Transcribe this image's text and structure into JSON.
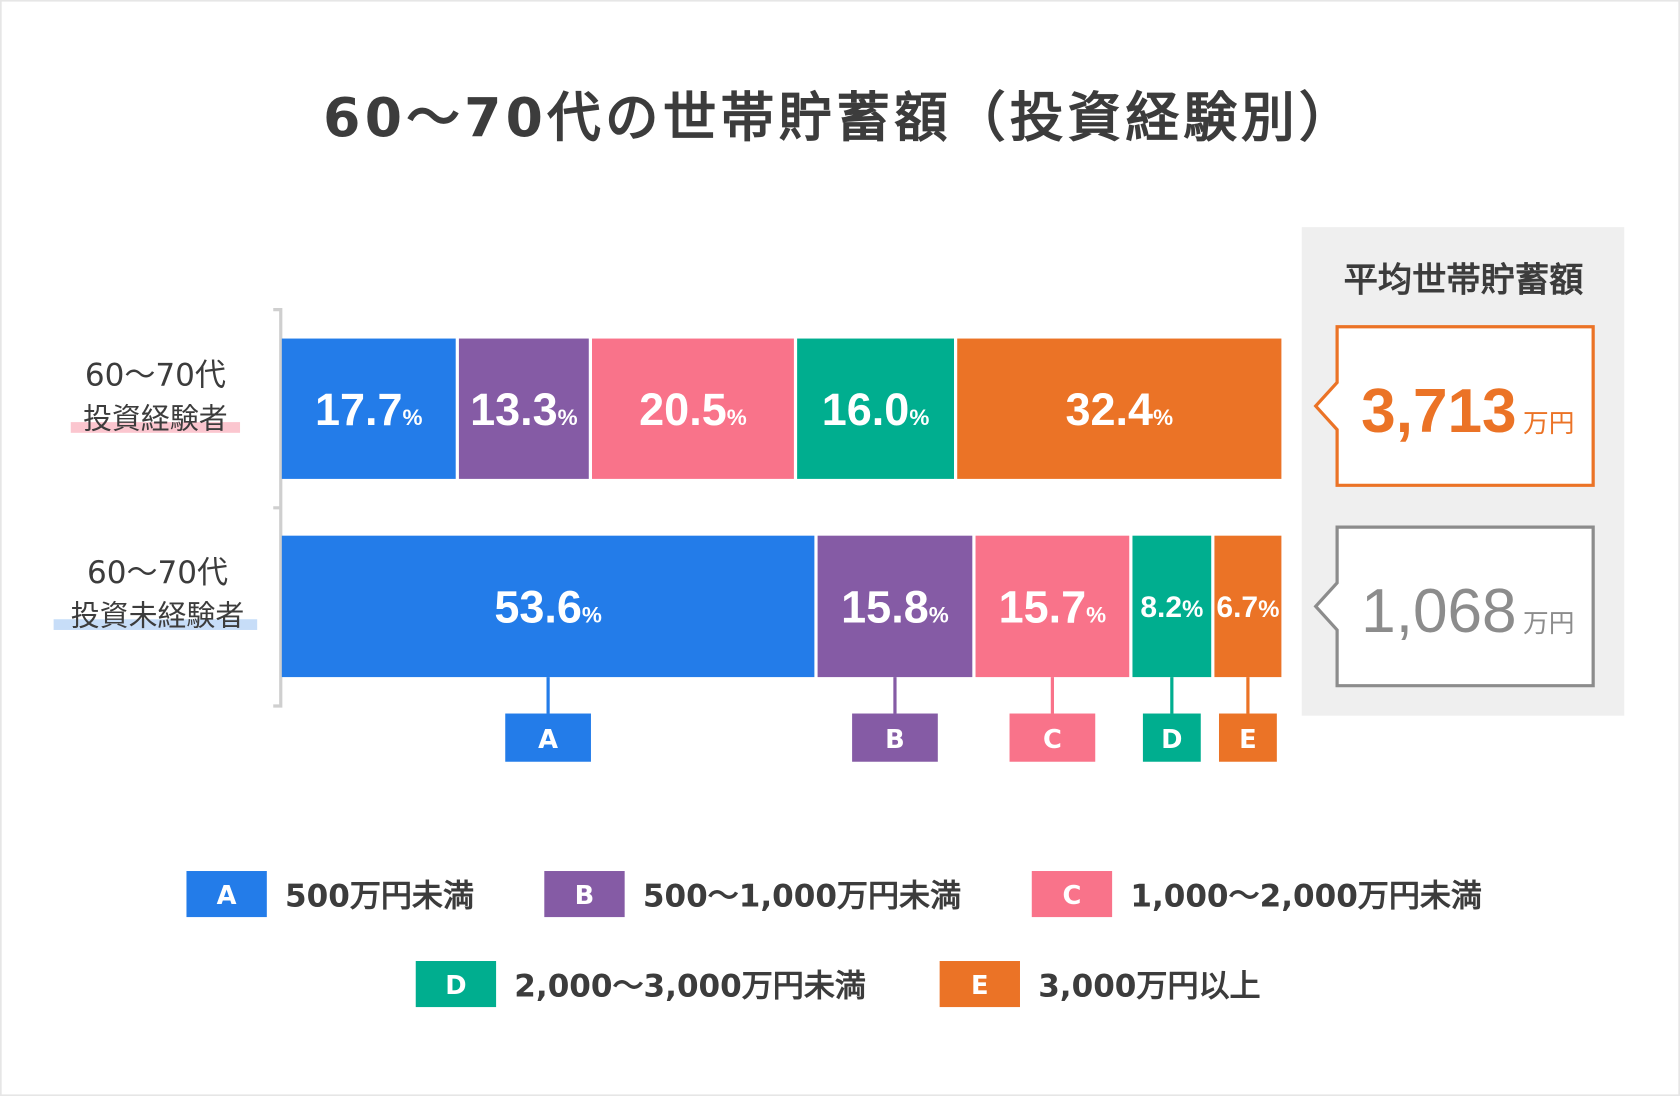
{
  "chart_data": {
    "type": "bar",
    "orientation": "horizontal-stacked-100",
    "title": "60〜70代の世帯貯蓄額（投資経験別）",
    "categories": [
      {
        "line1": "60〜70代",
        "line2": "投資経験者",
        "underline_color": "#fbc6cf"
      },
      {
        "line1": "60〜70代",
        "line2": "投資未経験者",
        "underline_color": "#c7ddf8"
      }
    ],
    "series": [
      {
        "key": "A",
        "name": "500万円未満",
        "color": "#237ce9",
        "values": [
          17.7,
          53.6
        ]
      },
      {
        "key": "B",
        "name": "500〜1,000万円未満",
        "color": "#855ba5",
        "values": [
          13.3,
          15.8
        ]
      },
      {
        "key": "C",
        "name": "1,000〜2,000万円未満",
        "color": "#f9738a",
        "values": [
          20.5,
          15.7
        ]
      },
      {
        "key": "D",
        "name": "2,000〜3,000万円未満",
        "color": "#00ae8f",
        "values": [
          16.0,
          8.2
        ]
      },
      {
        "key": "E",
        "name": "3,000万円以上",
        "color": "#eb7326",
        "values": [
          32.4,
          6.7
        ]
      }
    ],
    "value_labels": [
      [
        "17.7",
        "13.3",
        "20.5",
        "16.0",
        "32.4"
      ],
      [
        "53.6",
        "15.8",
        "15.7",
        "8.2",
        "6.7"
      ]
    ],
    "percent_unit": "%",
    "legend_placement": "bottom",
    "average_panel": {
      "title": "平均世帯貯蓄額",
      "unit": "万円",
      "values": [
        {
          "value": "3,713",
          "color": "#eb7326"
        },
        {
          "value": "1,068",
          "color": "#8c8c8c"
        }
      ]
    }
  }
}
